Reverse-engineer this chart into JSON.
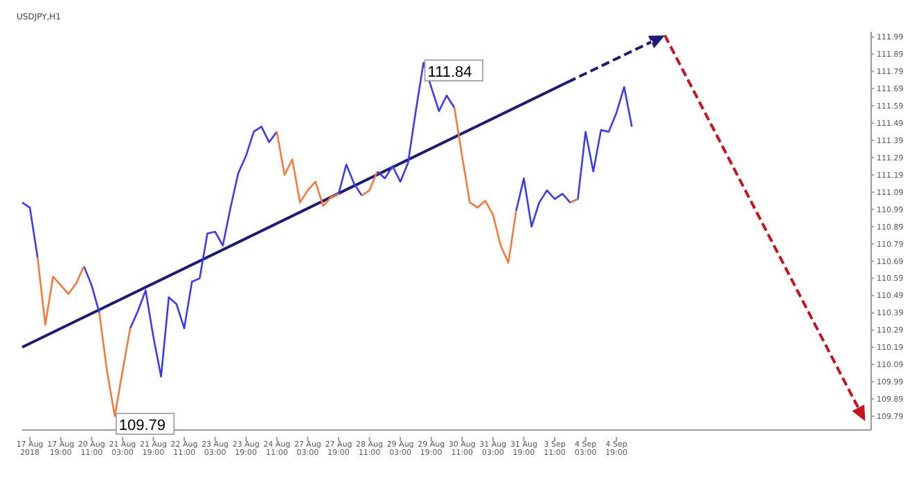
{
  "chart_data": {
    "type": "line",
    "title": "USDJPY,H1",
    "categories": [
      null,
      "17 Aug 2018",
      null,
      null,
      null,
      "17 Aug 19:00",
      null,
      null,
      null,
      "20 Aug 11:00",
      null,
      null,
      null,
      "21 Aug 03:00",
      null,
      null,
      null,
      "21 Aug 19:00",
      null,
      null,
      null,
      "22 Aug 11:00",
      null,
      null,
      null,
      "23 Aug 03:00",
      null,
      null,
      null,
      "23 Aug 19:00",
      null,
      null,
      null,
      "24 Aug 11:00",
      null,
      null,
      null,
      "27 Aug 03:00",
      null,
      null,
      null,
      "27 Aug 19:00",
      null,
      null,
      null,
      "28 Aug 11:00",
      null,
      null,
      null,
      "29 Aug 03:00",
      null,
      null,
      null,
      "29 Aug 19:00",
      null,
      null,
      null,
      "30 Aug 11:00",
      null,
      null,
      null,
      "31 Aug 03:00",
      null,
      null,
      null,
      "31 Aug 19:00",
      null,
      null,
      null,
      "3 Sep 11:00",
      null,
      null,
      null,
      "4 Sep 03:00",
      null,
      null,
      null,
      "4 Sep 19:00",
      null,
      null,
      null,
      null,
      null,
      null,
      null,
      null,
      null,
      null,
      null,
      null,
      null,
      null,
      null,
      null,
      null,
      null,
      null,
      null,
      null,
      null,
      null,
      null,
      null,
      null,
      null,
      null,
      null,
      null,
      null,
      null,
      null
    ],
    "ylim": [
      109.71,
      112.02
    ],
    "yticks": [
      109.79,
      109.89,
      109.99,
      110.09,
      110.19,
      110.29,
      110.39,
      110.49,
      110.59,
      110.69,
      110.79,
      110.89,
      110.99,
      111.09,
      111.19,
      111.29,
      111.39,
      111.49,
      111.59,
      111.69,
      111.79,
      111.89,
      111.99
    ],
    "grid": false,
    "marker": "none",
    "series": [
      {
        "color": "#3a3af5",
        "values": [
          111.03,
          111.0,
          110.71,
          null,
          null,
          null,
          null,
          null,
          110.66,
          110.55,
          110.39,
          null,
          null,
          null,
          110.3,
          110.4,
          110.52,
          110.25,
          110.02,
          110.48,
          110.44,
          110.3,
          110.57,
          110.59,
          110.85,
          110.86,
          110.78,
          111.0,
          111.2,
          111.3,
          111.44,
          111.47,
          111.38,
          111.44,
          null,
          null,
          null,
          null,
          null,
          null,
          null,
          111.08,
          111.25,
          111.14,
          111.07,
          null,
          111.21,
          111.17,
          111.24,
          111.15,
          111.26,
          111.56,
          111.84,
          111.7,
          111.56,
          111.65,
          111.58,
          null,
          null,
          null,
          null,
          null,
          null,
          null,
          110.98,
          111.17,
          110.89,
          111.03,
          111.1,
          111.05,
          111.08,
          111.03,
          111.05,
          111.44,
          111.21,
          111.45,
          111.44,
          111.55,
          111.7,
          111.47,
          null,
          null,
          null,
          null,
          null,
          null,
          null,
          null,
          null,
          null,
          null,
          null,
          null,
          null,
          null,
          null,
          null,
          null,
          null,
          null,
          null,
          null,
          null,
          null,
          null,
          null,
          null,
          null,
          null,
          null,
          null
        ]
      },
      {
        "color": "#f5793a",
        "values": [
          null,
          null,
          110.71,
          110.32,
          110.6,
          110.55,
          110.5,
          110.56,
          110.66,
          null,
          110.39,
          110.05,
          109.79,
          110.05,
          110.3,
          null,
          null,
          null,
          null,
          null,
          null,
          null,
          null,
          null,
          null,
          null,
          null,
          null,
          null,
          null,
          null,
          null,
          null,
          111.44,
          111.19,
          111.28,
          111.03,
          111.1,
          111.15,
          111.01,
          111.06,
          111.08,
          null,
          null,
          111.07,
          111.1,
          111.21,
          null,
          null,
          null,
          null,
          null,
          null,
          null,
          null,
          null,
          111.58,
          111.3,
          111.03,
          111.0,
          111.04,
          110.96,
          110.78,
          110.68,
          110.98,
          null,
          null,
          null,
          null,
          null,
          null,
          111.03,
          111.05,
          null,
          null,
          null,
          null,
          null,
          null,
          null,
          null,
          null,
          null,
          null,
          null,
          null,
          null,
          null,
          null,
          null,
          null,
          null,
          null,
          null,
          null,
          null,
          null,
          null,
          null,
          null,
          null,
          null,
          null,
          null,
          null,
          null,
          null,
          null,
          null,
          null,
          null
        ]
      }
    ],
    "annotations": [
      "111.84",
      "109.79"
    ]
  }
}
